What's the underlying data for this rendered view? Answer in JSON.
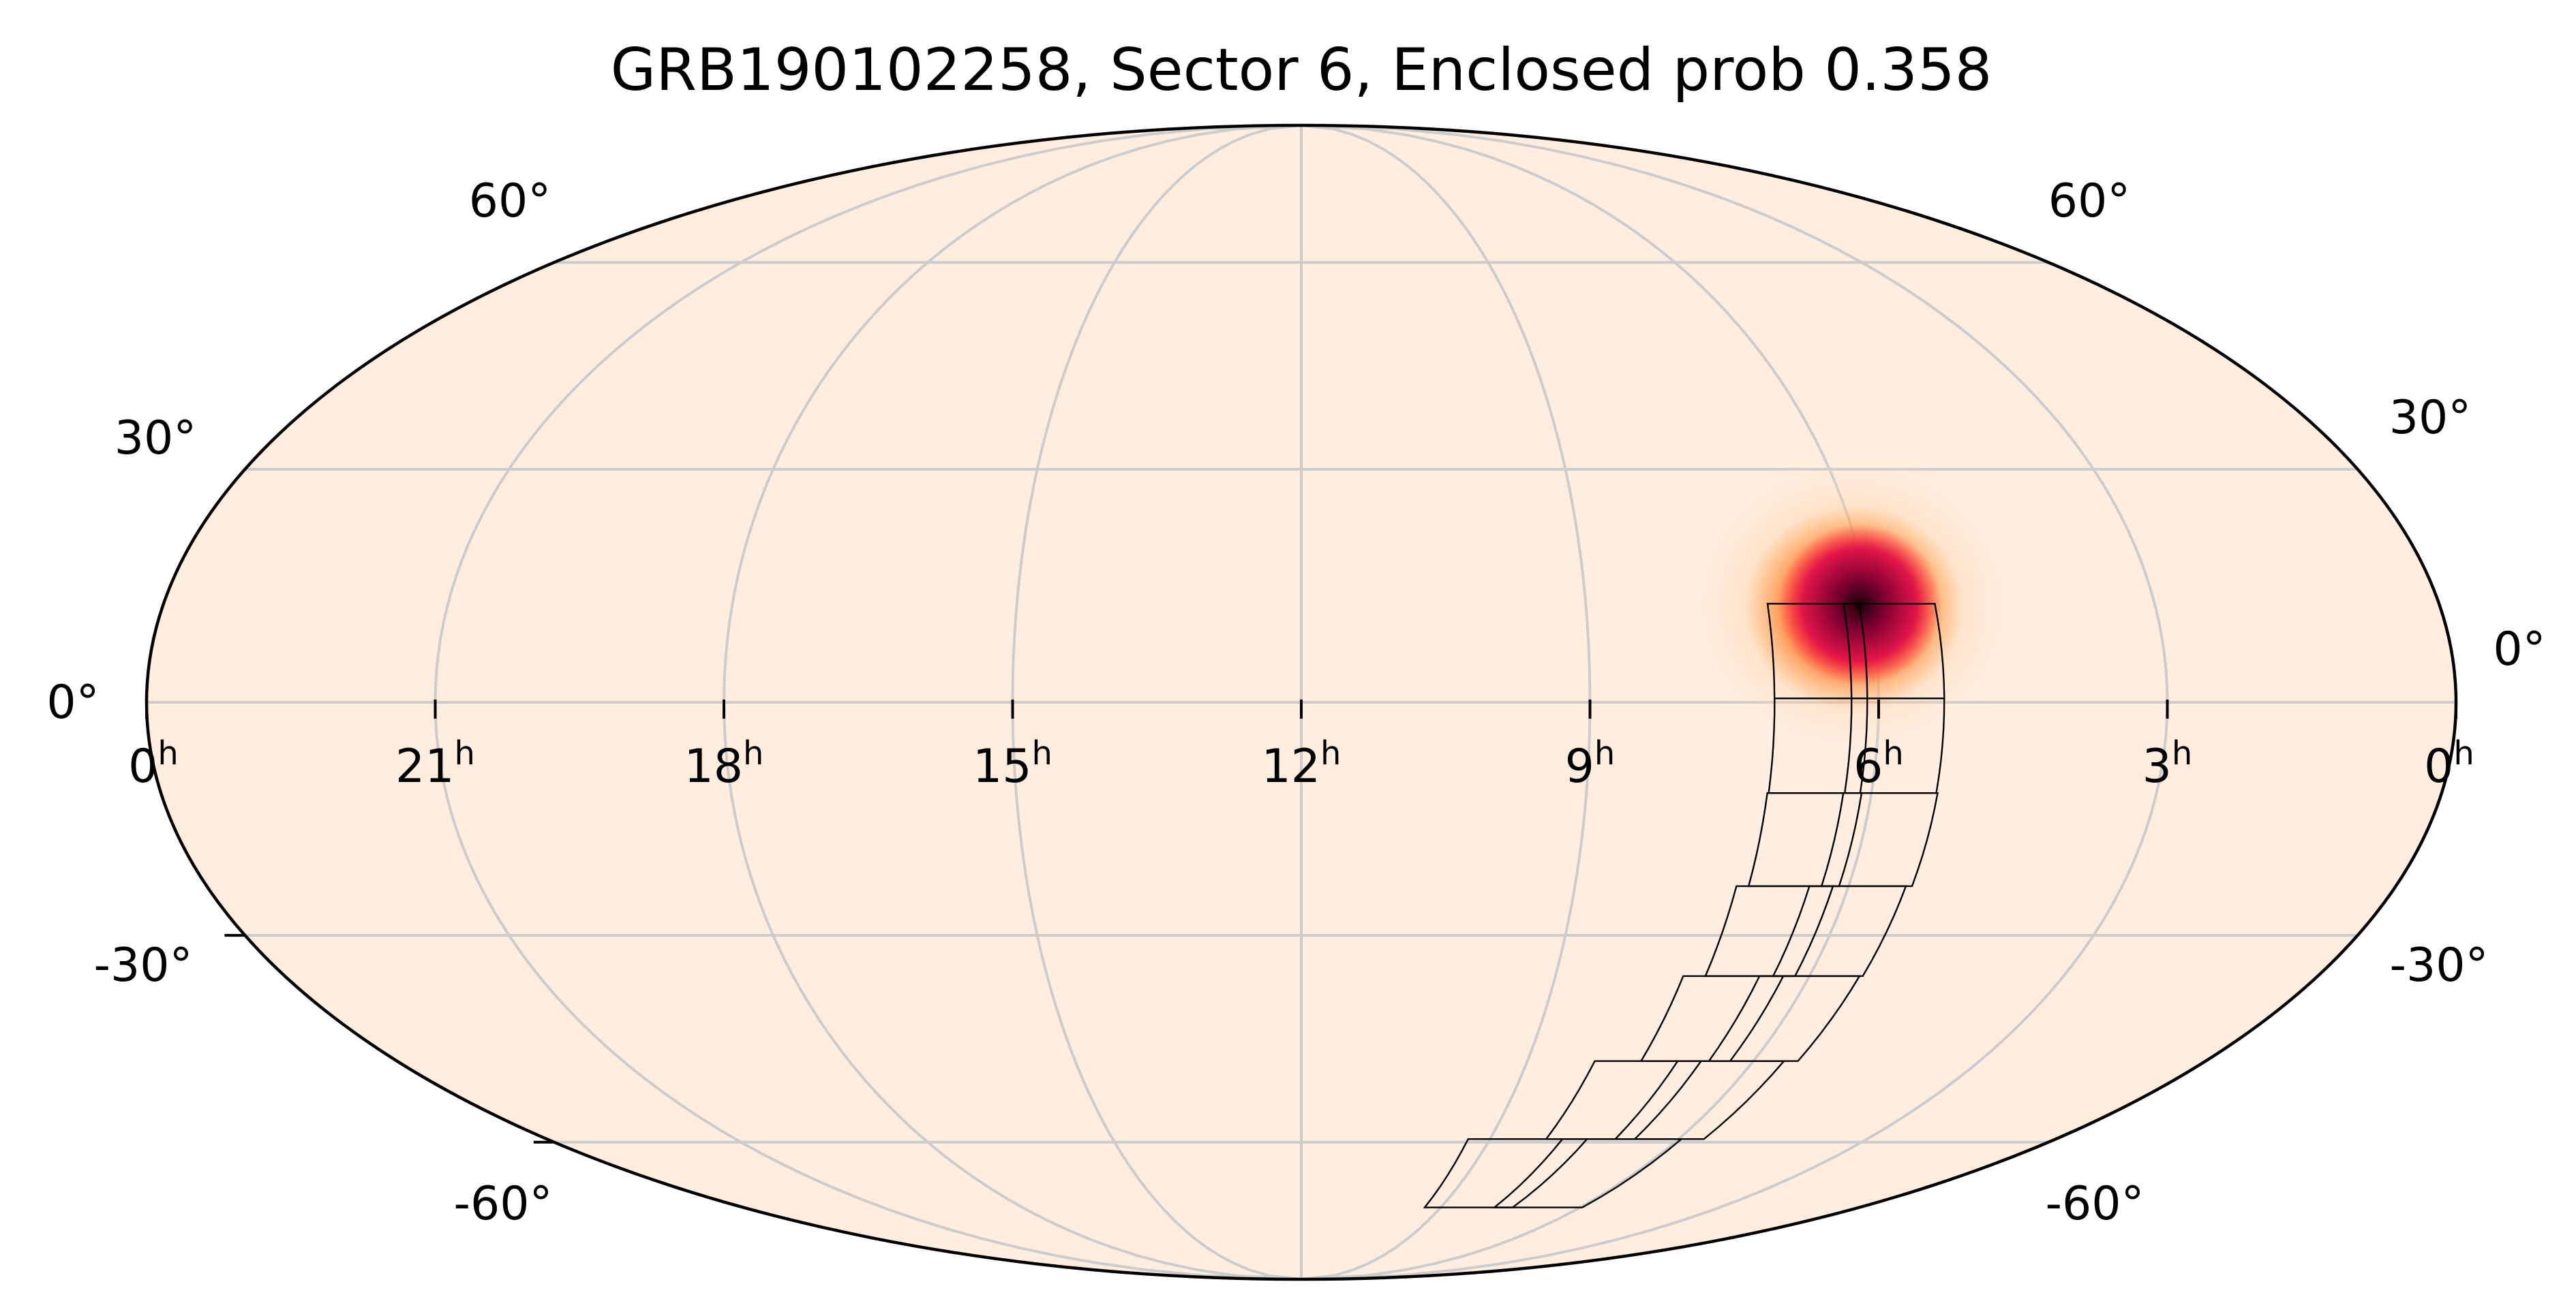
{
  "title": "GRB190102258, Sector 6, Enclosed prob 0.358",
  "projection": "mollweide",
  "colors": {
    "background": "#ffeee0",
    "grid": "#cccccc",
    "frame": "#000000",
    "tiles": "#000000",
    "colormap": "hot-red"
  },
  "latitude_labels": {
    "left": [
      "60°",
      "30°",
      "0°",
      "-30°",
      "-60°"
    ],
    "right": [
      "60°",
      "30°",
      "0°",
      "-30°",
      "-60°"
    ]
  },
  "ra_labels": [
    {
      "hours": 24,
      "text": "0",
      "unit": "h"
    },
    {
      "hours": 21,
      "text": "21",
      "unit": "h"
    },
    {
      "hours": 18,
      "text": "18",
      "unit": "h"
    },
    {
      "hours": 15,
      "text": "15",
      "unit": "h"
    },
    {
      "hours": 12,
      "text": "12",
      "unit": "h"
    },
    {
      "hours": 9,
      "text": "9",
      "unit": "h"
    },
    {
      "hours": 6,
      "text": "6",
      "unit": "h"
    },
    {
      "hours": 3,
      "text": "3",
      "unit": "h"
    },
    {
      "hours": 0,
      "text": "0",
      "unit": "h"
    }
  ],
  "probability_peak": {
    "ra_hours": 6.0,
    "dec_deg": 15
  },
  "sector_tiles": [
    {
      "ra_hours": 6.6,
      "dec_deg": 6.5
    },
    {
      "ra_hours": 5.8,
      "dec_deg": 6.5
    },
    {
      "ra_hours": 6.6,
      "dec_deg": -5.5
    },
    {
      "ra_hours": 5.8,
      "dec_deg": -5.5
    },
    {
      "ra_hours": 6.6,
      "dec_deg": -17.5
    },
    {
      "ra_hours": 5.8,
      "dec_deg": -17.5
    },
    {
      "ra_hours": 6.7,
      "dec_deg": -29.5
    },
    {
      "ra_hours": 5.9,
      "dec_deg": -29.5
    },
    {
      "ra_hours": 6.9,
      "dec_deg": -41.5
    },
    {
      "ra_hours": 6.0,
      "dec_deg": -41.5
    },
    {
      "ra_hours": 7.4,
      "dec_deg": -53.5
    },
    {
      "ra_hours": 6.3,
      "dec_deg": -53.5
    },
    {
      "ra_hours": 8.4,
      "dec_deg": -65.5
    },
    {
      "ra_hours": 6.9,
      "dec_deg": -65.5
    }
  ]
}
